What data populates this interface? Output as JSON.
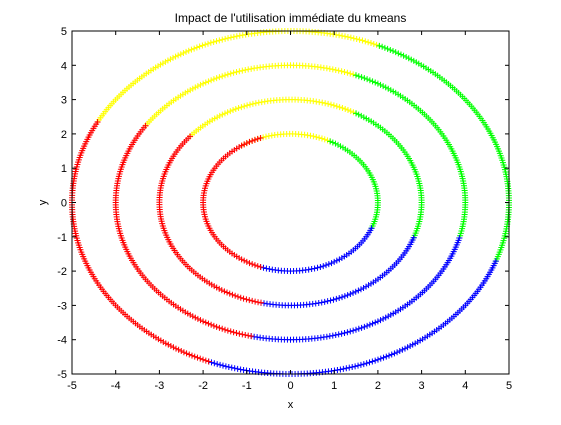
{
  "chart_data": {
    "type": "scatter",
    "title": "Impact de l'utilisation immédiate du kmeans",
    "xlabel": "x",
    "ylabel": "y",
    "xlim": [
      -5,
      5
    ],
    "ylim": [
      -5,
      5
    ],
    "xticks": [
      -5,
      -4,
      -3,
      -2,
      -1,
      0,
      1,
      2,
      3,
      4,
      5
    ],
    "yticks": [
      -5,
      -4,
      -3,
      -2,
      -1,
      0,
      1,
      2,
      3,
      4,
      5
    ],
    "grid": false,
    "marker": "+",
    "clusters": [
      {
        "color": "#ffff00",
        "color_name": "yellow"
      },
      {
        "color": "#00ff00",
        "color_name": "green"
      },
      {
        "color": "#0000ff",
        "color_name": "blue"
      },
      {
        "color": "#ff0000",
        "color_name": "red"
      }
    ],
    "rings": [
      {
        "radius": 2,
        "segments": [
          {
            "cluster": 0,
            "from_deg": 63,
            "to_deg": 124
          },
          {
            "cluster": 1,
            "from_deg": -22,
            "to_deg": 63
          },
          {
            "cluster": 2,
            "from_deg": -110,
            "to_deg": -22
          },
          {
            "cluster": 3,
            "from_deg": -250,
            "to_deg": -110
          }
        ]
      },
      {
        "radius": 3,
        "segments": [
          {
            "cluster": 0,
            "from_deg": 60,
            "to_deg": 140
          },
          {
            "cluster": 1,
            "from_deg": -20,
            "to_deg": 60
          },
          {
            "cluster": 2,
            "from_deg": -103,
            "to_deg": -20
          },
          {
            "cluster": 3,
            "from_deg": -220,
            "to_deg": -103
          }
        ]
      },
      {
        "radius": 4,
        "segments": [
          {
            "cluster": 0,
            "from_deg": 68,
            "to_deg": 146
          },
          {
            "cluster": 1,
            "from_deg": -15,
            "to_deg": 68
          },
          {
            "cluster": 2,
            "from_deg": -103,
            "to_deg": -15
          },
          {
            "cluster": 3,
            "from_deg": -214,
            "to_deg": -103
          }
        ]
      },
      {
        "radius": 5,
        "segments": [
          {
            "cluster": 0,
            "from_deg": 66,
            "to_deg": 152
          },
          {
            "cluster": 1,
            "from_deg": -20,
            "to_deg": 66
          },
          {
            "cluster": 2,
            "from_deg": -112,
            "to_deg": -20
          },
          {
            "cluster": 3,
            "from_deg": -208,
            "to_deg": -112
          }
        ]
      }
    ]
  }
}
